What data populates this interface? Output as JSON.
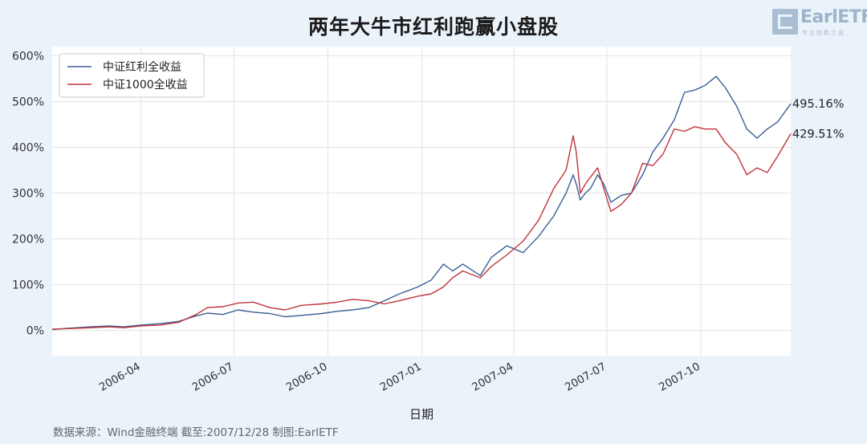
{
  "title": "两年大牛市红利跑赢小盘股",
  "logo": {
    "name": "EarlETF",
    "tagline": "专业指数之道"
  },
  "source": "数据来源：Wind金融终端 截至:2007/12/28 制图:EarlETF",
  "chart_data": {
    "type": "line",
    "title": "两年大牛市红利跑赢小盘股",
    "xlabel": "日期",
    "ylabel": "",
    "x_range": [
      "2006-01-04",
      "2007-12-28"
    ],
    "xticks": [
      "2006-04",
      "2006-07",
      "2006-10",
      "2007-01",
      "2007-04",
      "2007-07",
      "2007-10"
    ],
    "xtick_dates": [
      "2006-04-01",
      "2006-07-01",
      "2006-10-01",
      "2007-01-01",
      "2007-04-01",
      "2007-07-01",
      "2007-10-01"
    ],
    "ylim": [
      -55,
      620
    ],
    "yticks": [
      0,
      100,
      200,
      300,
      400,
      500,
      600
    ],
    "ytick_labels": [
      "0%",
      "100%",
      "200%",
      "300%",
      "400%",
      "500%",
      "600%"
    ],
    "grid": true,
    "legend_position": "top-left",
    "series": [
      {
        "name": "中证红利全收益",
        "color": "#3a5f97",
        "end_label": "495.16%",
        "points": [
          [
            "2006-01-04",
            2
          ],
          [
            "2006-01-20",
            5
          ],
          [
            "2006-02-10",
            8
          ],
          [
            "2006-03-01",
            10
          ],
          [
            "2006-03-15",
            8
          ],
          [
            "2006-04-01",
            12
          ],
          [
            "2006-04-20",
            15
          ],
          [
            "2006-05-08",
            20
          ],
          [
            "2006-05-25",
            32
          ],
          [
            "2006-06-05",
            38
          ],
          [
            "2006-06-20",
            35
          ],
          [
            "2006-07-05",
            45
          ],
          [
            "2006-07-20",
            40
          ],
          [
            "2006-08-05",
            37
          ],
          [
            "2006-08-20",
            30
          ],
          [
            "2006-09-05",
            33
          ],
          [
            "2006-09-25",
            37
          ],
          [
            "2006-10-10",
            42
          ],
          [
            "2006-10-25",
            45
          ],
          [
            "2006-11-10",
            50
          ],
          [
            "2006-11-25",
            65
          ],
          [
            "2006-12-10",
            80
          ],
          [
            "2006-12-28",
            95
          ],
          [
            "2007-01-10",
            110
          ],
          [
            "2007-01-22",
            145
          ],
          [
            "2007-01-31",
            130
          ],
          [
            "2007-02-10",
            145
          ],
          [
            "2007-02-27",
            120
          ],
          [
            "2007-03-10",
            160
          ],
          [
            "2007-03-25",
            185
          ],
          [
            "2007-04-10",
            170
          ],
          [
            "2007-04-25",
            205
          ],
          [
            "2007-05-10",
            250
          ],
          [
            "2007-05-22",
            300
          ],
          [
            "2007-05-29",
            340
          ],
          [
            "2007-06-01",
            320
          ],
          [
            "2007-06-05",
            285
          ],
          [
            "2007-06-10",
            300
          ],
          [
            "2007-06-15",
            310
          ],
          [
            "2007-06-22",
            340
          ],
          [
            "2007-06-28",
            320
          ],
          [
            "2007-07-05",
            280
          ],
          [
            "2007-07-15",
            295
          ],
          [
            "2007-07-25",
            300
          ],
          [
            "2007-08-05",
            340
          ],
          [
            "2007-08-15",
            390
          ],
          [
            "2007-08-25",
            420
          ],
          [
            "2007-09-05",
            460
          ],
          [
            "2007-09-15",
            520
          ],
          [
            "2007-09-25",
            525
          ],
          [
            "2007-10-05",
            535
          ],
          [
            "2007-10-16",
            555
          ],
          [
            "2007-10-25",
            530
          ],
          [
            "2007-11-05",
            490
          ],
          [
            "2007-11-15",
            440
          ],
          [
            "2007-11-25",
            420
          ],
          [
            "2007-12-05",
            440
          ],
          [
            "2007-12-15",
            455
          ],
          [
            "2007-12-28",
            495.16
          ]
        ]
      },
      {
        "name": "中证1000全收益",
        "color": "#c0343a",
        "end_label": "429.51%",
        "points": [
          [
            "2006-01-04",
            3
          ],
          [
            "2006-01-20",
            4
          ],
          [
            "2006-02-10",
            6
          ],
          [
            "2006-03-01",
            8
          ],
          [
            "2006-03-15",
            6
          ],
          [
            "2006-04-01",
            10
          ],
          [
            "2006-04-20",
            12
          ],
          [
            "2006-05-08",
            18
          ],
          [
            "2006-05-25",
            35
          ],
          [
            "2006-06-05",
            50
          ],
          [
            "2006-06-20",
            52
          ],
          [
            "2006-07-05",
            60
          ],
          [
            "2006-07-20",
            62
          ],
          [
            "2006-08-05",
            50
          ],
          [
            "2006-08-20",
            45
          ],
          [
            "2006-09-05",
            55
          ],
          [
            "2006-09-25",
            58
          ],
          [
            "2006-10-10",
            62
          ],
          [
            "2006-10-25",
            68
          ],
          [
            "2006-11-10",
            65
          ],
          [
            "2006-11-25",
            58
          ],
          [
            "2006-12-10",
            65
          ],
          [
            "2006-12-28",
            75
          ],
          [
            "2007-01-10",
            80
          ],
          [
            "2007-01-22",
            95
          ],
          [
            "2007-01-31",
            115
          ],
          [
            "2007-02-10",
            130
          ],
          [
            "2007-02-27",
            115
          ],
          [
            "2007-03-10",
            140
          ],
          [
            "2007-03-25",
            165
          ],
          [
            "2007-04-10",
            195
          ],
          [
            "2007-04-25",
            240
          ],
          [
            "2007-05-10",
            310
          ],
          [
            "2007-05-22",
            350
          ],
          [
            "2007-05-29",
            425
          ],
          [
            "2007-06-01",
            390
          ],
          [
            "2007-06-05",
            300
          ],
          [
            "2007-06-10",
            320
          ],
          [
            "2007-06-15",
            335
          ],
          [
            "2007-06-22",
            355
          ],
          [
            "2007-06-28",
            310
          ],
          [
            "2007-07-05",
            260
          ],
          [
            "2007-07-15",
            275
          ],
          [
            "2007-07-25",
            300
          ],
          [
            "2007-08-05",
            365
          ],
          [
            "2007-08-15",
            360
          ],
          [
            "2007-08-25",
            385
          ],
          [
            "2007-09-05",
            440
          ],
          [
            "2007-09-15",
            435
          ],
          [
            "2007-09-25",
            445
          ],
          [
            "2007-10-05",
            440
          ],
          [
            "2007-10-16",
            440
          ],
          [
            "2007-10-25",
            410
          ],
          [
            "2007-11-05",
            385
          ],
          [
            "2007-11-15",
            340
          ],
          [
            "2007-11-25",
            355
          ],
          [
            "2007-12-05",
            345
          ],
          [
            "2007-12-15",
            380
          ],
          [
            "2007-12-28",
            429.51
          ]
        ]
      }
    ]
  }
}
